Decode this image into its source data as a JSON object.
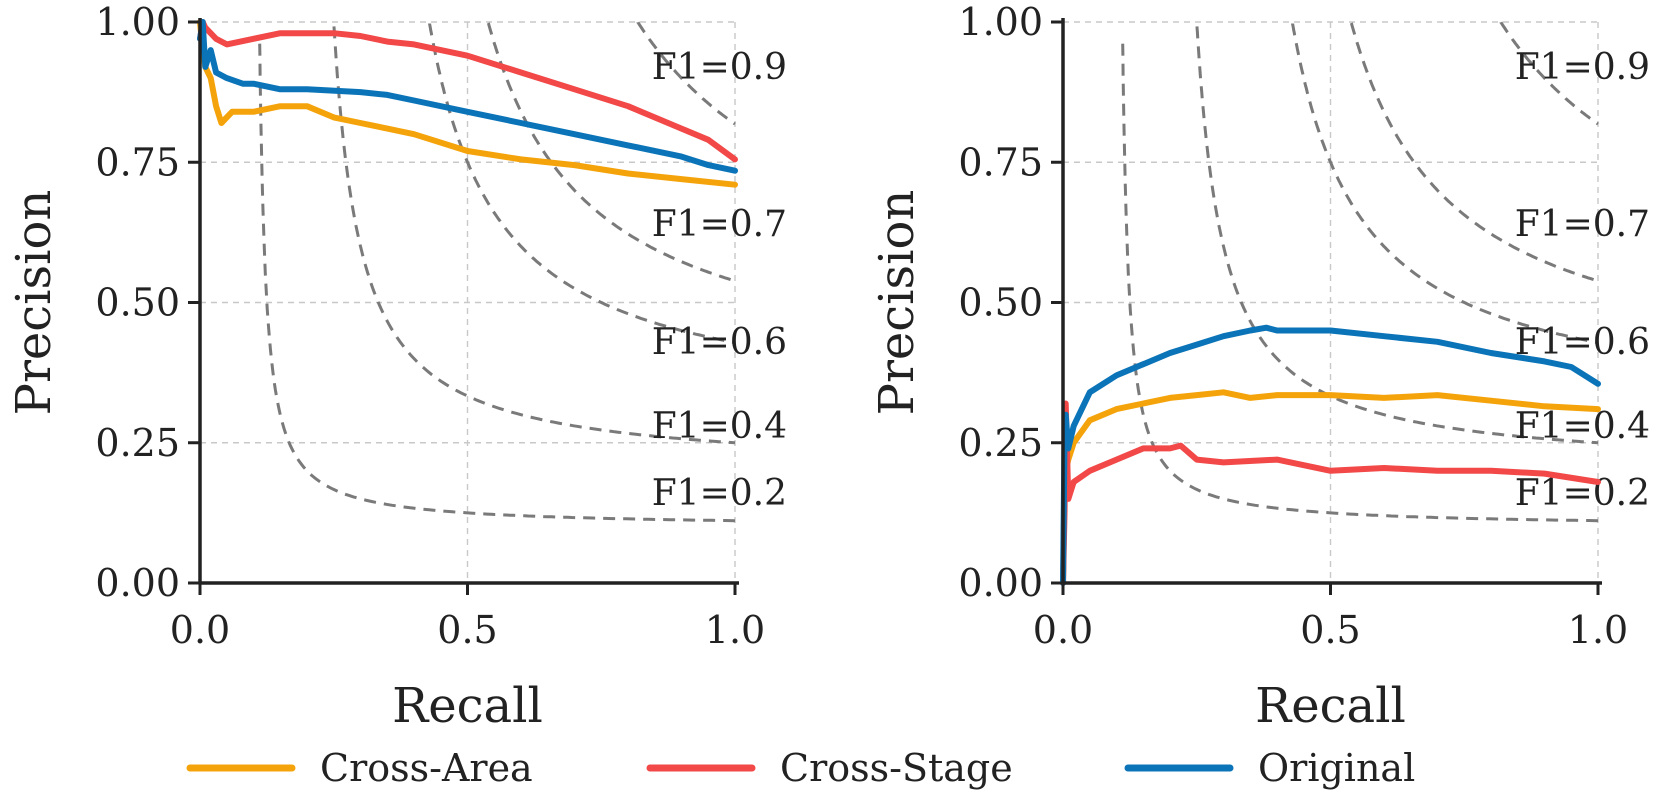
{
  "colors": {
    "Cross-Area": "#f5a30b",
    "Cross-Stage": "#f24848",
    "Original": "#0b74b8",
    "iso": "#7a7a7a",
    "grid": "#c8c8c8",
    "axis": "#222222"
  },
  "legend": {
    "position": "bottom-center",
    "entries": [
      {
        "name": "Cross-Area",
        "label": "Cross-Area"
      },
      {
        "name": "Cross-Stage",
        "label": "Cross-Stage"
      },
      {
        "name": "Original",
        "label": "Original"
      }
    ]
  },
  "chart_data": [
    {
      "type": "line",
      "xlabel": "Recall",
      "ylabel": "Precision",
      "xlim": [
        0,
        1
      ],
      "ylim": [
        0,
        1
      ],
      "xticks": [
        "0.0",
        "0.5",
        "1.0"
      ],
      "yticks": [
        "0.00",
        "0.25",
        "0.50",
        "0.75",
        "1.00"
      ],
      "grid": true,
      "iso_f1": [
        {
          "f": 0.9,
          "label": "F1=0.9",
          "label_y": 0.92
        },
        {
          "f": 0.7,
          "label": "F1=0.7",
          "label_y": 0.64
        },
        {
          "f": 0.6,
          "label": "F1=0.6",
          "label_y": 0.43
        },
        {
          "f": 0.4,
          "label": "F1=0.4",
          "label_y": 0.28
        },
        {
          "f": 0.2,
          "label": "F1=0.2",
          "label_y": 0.16
        }
      ],
      "series": [
        {
          "name": "Cross-Area",
          "x": [
            0.0,
            0.005,
            0.01,
            0.02,
            0.03,
            0.04,
            0.06,
            0.1,
            0.15,
            0.2,
            0.25,
            0.3,
            0.35,
            0.4,
            0.5,
            0.6,
            0.7,
            0.8,
            0.9,
            1.0
          ],
          "y": [
            1.0,
            0.95,
            0.92,
            0.9,
            0.85,
            0.82,
            0.84,
            0.84,
            0.85,
            0.85,
            0.83,
            0.82,
            0.81,
            0.8,
            0.77,
            0.755,
            0.745,
            0.73,
            0.72,
            0.71
          ]
        },
        {
          "name": "Cross-Stage",
          "x": [
            0.0,
            0.005,
            0.01,
            0.02,
            0.03,
            0.05,
            0.1,
            0.15,
            0.2,
            0.25,
            0.3,
            0.35,
            0.4,
            0.5,
            0.6,
            0.7,
            0.8,
            0.9,
            0.95,
            1.0
          ],
          "y": [
            0.97,
            1.0,
            0.99,
            0.98,
            0.97,
            0.96,
            0.97,
            0.98,
            0.98,
            0.98,
            0.975,
            0.965,
            0.96,
            0.94,
            0.91,
            0.88,
            0.85,
            0.81,
            0.79,
            0.755
          ]
        },
        {
          "name": "Original",
          "x": [
            0.0,
            0.005,
            0.01,
            0.02,
            0.03,
            0.05,
            0.08,
            0.1,
            0.15,
            0.2,
            0.3,
            0.35,
            0.4,
            0.5,
            0.6,
            0.7,
            0.8,
            0.9,
            0.95,
            1.0
          ],
          "y": [
            0.97,
            1.0,
            0.92,
            0.95,
            0.91,
            0.9,
            0.89,
            0.89,
            0.88,
            0.88,
            0.875,
            0.87,
            0.86,
            0.84,
            0.82,
            0.8,
            0.78,
            0.76,
            0.745,
            0.735
          ]
        }
      ]
    },
    {
      "type": "line",
      "xlabel": "Recall",
      "ylabel": "Precision",
      "xlim": [
        0,
        1
      ],
      "ylim": [
        0,
        1
      ],
      "xticks": [
        "0.0",
        "0.5",
        "1.0"
      ],
      "yticks": [
        "0.00",
        "0.25",
        "0.50",
        "0.75",
        "1.00"
      ],
      "grid": true,
      "iso_f1": [
        {
          "f": 0.9,
          "label": "F1=0.9",
          "label_y": 0.92
        },
        {
          "f": 0.7,
          "label": "F1=0.7",
          "label_y": 0.64
        },
        {
          "f": 0.6,
          "label": "F1=0.6",
          "label_y": 0.43
        },
        {
          "f": 0.4,
          "label": "F1=0.4",
          "label_y": 0.28
        },
        {
          "f": 0.2,
          "label": "F1=0.2",
          "label_y": 0.16
        }
      ],
      "series": [
        {
          "name": "Cross-Area",
          "x": [
            0.0,
            0.003,
            0.005,
            0.01,
            0.02,
            0.05,
            0.1,
            0.15,
            0.2,
            0.25,
            0.3,
            0.35,
            0.4,
            0.5,
            0.6,
            0.7,
            0.8,
            0.9,
            1.0
          ],
          "y": [
            0.0,
            0.18,
            0.2,
            0.22,
            0.25,
            0.29,
            0.31,
            0.32,
            0.33,
            0.335,
            0.34,
            0.33,
            0.335,
            0.335,
            0.33,
            0.335,
            0.325,
            0.315,
            0.31
          ]
        },
        {
          "name": "Cross-Stage",
          "x": [
            0.0,
            0.003,
            0.005,
            0.01,
            0.02,
            0.05,
            0.1,
            0.15,
            0.2,
            0.22,
            0.25,
            0.3,
            0.4,
            0.5,
            0.6,
            0.7,
            0.8,
            0.9,
            1.0
          ],
          "y": [
            0.0,
            0.13,
            0.32,
            0.15,
            0.18,
            0.2,
            0.22,
            0.24,
            0.24,
            0.245,
            0.22,
            0.215,
            0.22,
            0.2,
            0.205,
            0.2,
            0.2,
            0.195,
            0.18
          ]
        },
        {
          "name": "Original",
          "x": [
            0.0,
            0.003,
            0.005,
            0.01,
            0.02,
            0.05,
            0.1,
            0.15,
            0.2,
            0.25,
            0.3,
            0.35,
            0.38,
            0.4,
            0.5,
            0.6,
            0.7,
            0.8,
            0.9,
            0.95,
            1.0
          ],
          "y": [
            0.0,
            0.27,
            0.3,
            0.24,
            0.28,
            0.34,
            0.37,
            0.39,
            0.41,
            0.425,
            0.44,
            0.45,
            0.455,
            0.45,
            0.45,
            0.44,
            0.43,
            0.41,
            0.395,
            0.385,
            0.355
          ]
        }
      ]
    }
  ]
}
